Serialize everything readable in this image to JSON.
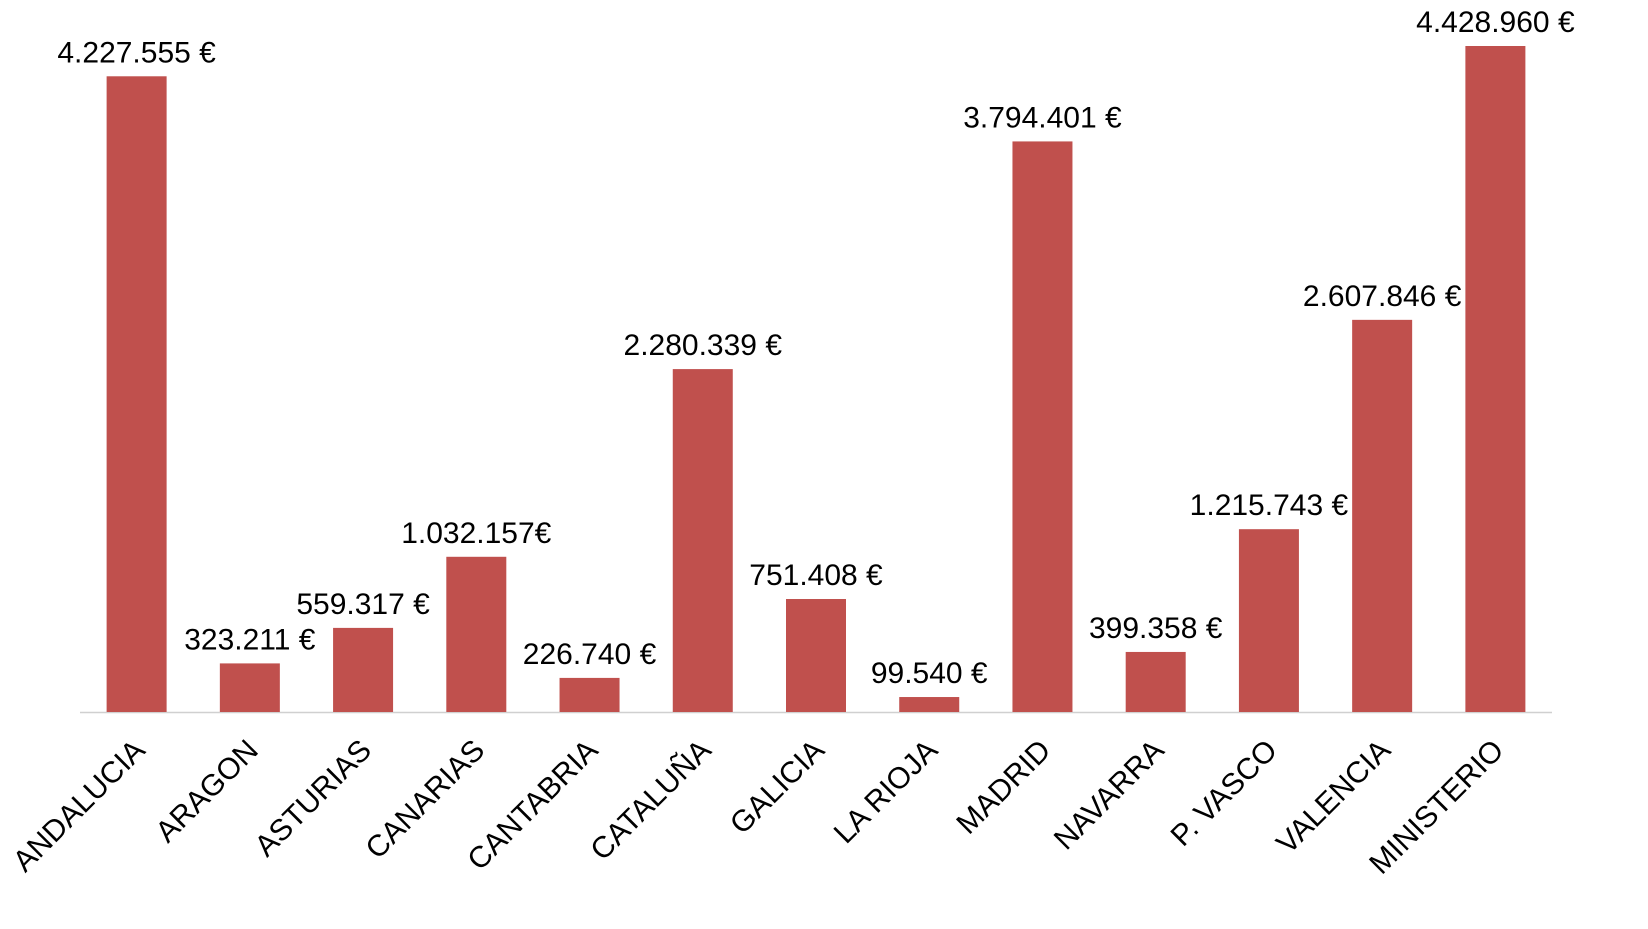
{
  "chart_data": {
    "type": "bar",
    "categories": [
      "ANDALUCIA",
      "ARAGON",
      "ASTURIAS",
      "CANARIAS",
      "CANTABRIA",
      "CATALUÑA",
      "GALICIA",
      "LA RIOJA",
      "MADRID",
      "NAVARRA",
      "P. VASCO",
      "VALENCIA",
      "MINISTERIO"
    ],
    "values": [
      4227555,
      323211,
      559317,
      1032157,
      226740,
      2280339,
      751408,
      99540,
      3794401,
      399358,
      1215743,
      2607846,
      4428960
    ],
    "value_labels": [
      "4.227.555 €",
      "323.211 €",
      "559.317 €",
      "1.032.157€",
      "226.740 €",
      "2.280.339 €",
      "751.408 €",
      "99.540 €",
      "3.794.401 €",
      "399.358 €",
      "1.215.743 €",
      "2.607.846 €",
      "4.428.960 €"
    ],
    "color": "#c0504d"
  }
}
